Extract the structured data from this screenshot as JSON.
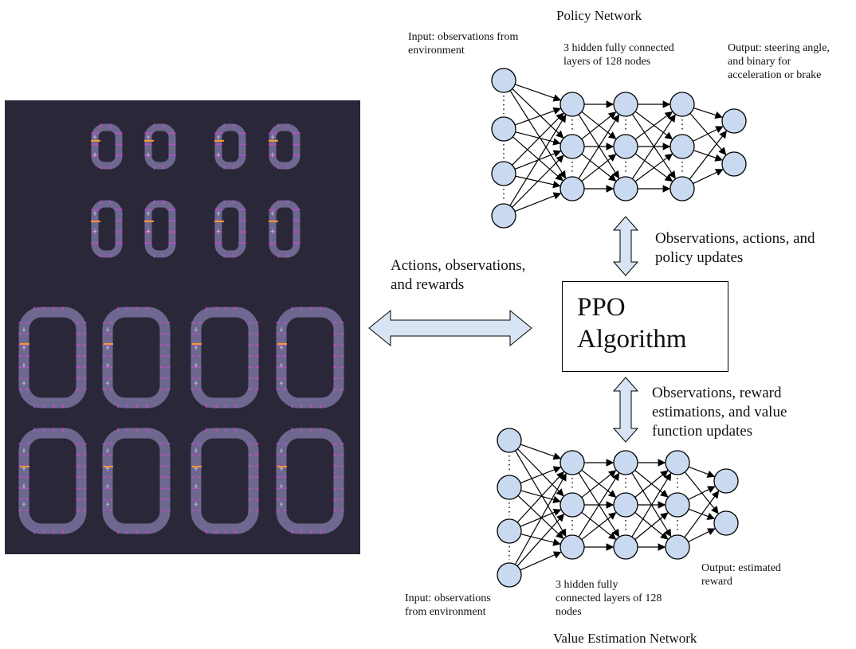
{
  "policy_network": {
    "title": "Policy Network",
    "input_label": "Input: observations from\nenvironment",
    "hidden_label": "3 hidden fully connected\nlayers of 128 nodes",
    "output_label": "Output: steering angle,\nand binary for\nacceleration or brake"
  },
  "value_network": {
    "title": "Value Estimation Network",
    "input_label": "Input: observations\nfrom environment",
    "hidden_label": "3 hidden fully\nconnected layers of 128\nnodes",
    "output_label": "Output: estimated\nreward"
  },
  "ppo": {
    "label": "PPO\nAlgorithm"
  },
  "arrows": {
    "env_label": "Actions, observations,\nand rewards",
    "policy_label": "Observations, actions, and\npolicy updates",
    "value_label": "Observations, reward\nestimations, and value\nfunction updates"
  },
  "colors": {
    "node_fill": "#c9daf0",
    "arrow_fill": "#d6e4f3",
    "sim_bg": "#2a2838",
    "track": "#6e6890",
    "track_marks": "#e040e0"
  },
  "simulation": {
    "small_track_rows": 2,
    "small_tracks_per_row": 4,
    "large_track_rows": 2,
    "large_tracks_per_row": 4
  }
}
